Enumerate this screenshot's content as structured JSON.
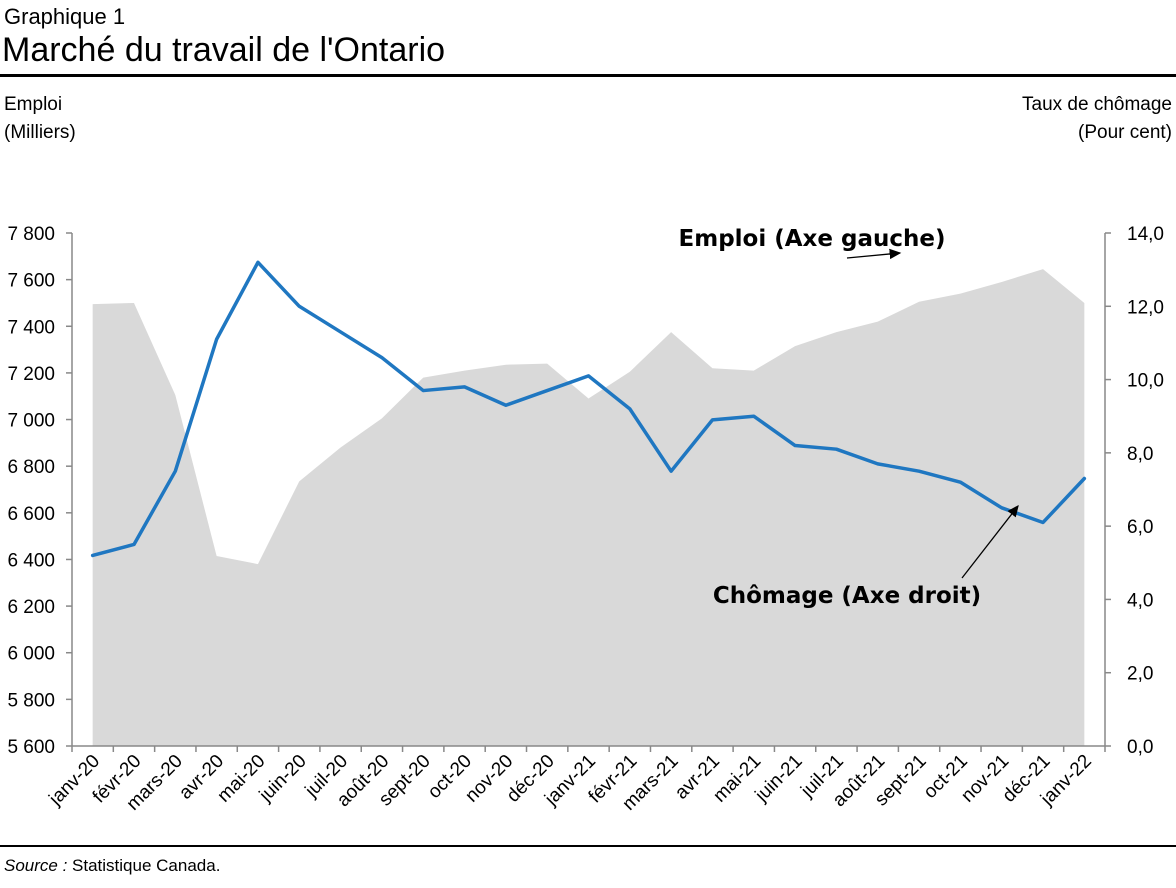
{
  "header": {
    "label": "Graphique 1",
    "title": "Marché du travail de l'Ontario"
  },
  "axes": {
    "left_title_line1": "Emploi",
    "left_title_line2": "(Milliers)",
    "right_title_line1": "Taux de chômage",
    "right_title_line2": "(Pour cent)"
  },
  "footer": {
    "source_label": "Source :",
    "source_text": " Statistique Canada."
  },
  "colors": {
    "area": "#d9d9d9",
    "line": "#1f77c1",
    "axis": "#888888"
  },
  "chart_data": {
    "type": "area+line",
    "categories": [
      "janv-20",
      "févr-20",
      "mars-20",
      "avr-20",
      "mai-20",
      "juin-20",
      "juil-20",
      "août-20",
      "sept-20",
      "oct-20",
      "nov-20",
      "déc-20",
      "janv-21",
      "févr-21",
      "mars-21",
      "avr-21",
      "mai-21",
      "juin-21",
      "juil-21",
      "août-21",
      "sept-21",
      "oct-21",
      "nov-21",
      "déc-21",
      "janv-22"
    ],
    "series": [
      {
        "name": "Emploi (Axe gauche)",
        "type": "area",
        "axis": "left",
        "values": [
          7495,
          7500,
          7105,
          6415,
          6380,
          6735,
          6880,
          7005,
          7180,
          7210,
          7235,
          7240,
          7090,
          7205,
          7375,
          7220,
          7210,
          7315,
          7375,
          7420,
          7505,
          7540,
          7590,
          7645,
          7500
        ]
      },
      {
        "name": "Chômage (Axe droit)",
        "type": "line",
        "axis": "right",
        "values": [
          5.2,
          5.5,
          7.5,
          11.1,
          13.2,
          12.0,
          11.3,
          10.6,
          9.7,
          9.8,
          9.3,
          9.7,
          10.1,
          9.2,
          7.5,
          8.9,
          9.0,
          8.2,
          8.1,
          7.7,
          7.5,
          7.2,
          6.5,
          6.1,
          7.3
        ]
      }
    ],
    "y_left": {
      "min": 5600,
      "max": 7800,
      "ticks": [
        "5 600",
        "5 800",
        "6 000",
        "6 200",
        "6 400",
        "6 600",
        "6 800",
        "7 000",
        "7 200",
        "7 400",
        "7 600",
        "7 800"
      ]
    },
    "y_right": {
      "min": 0,
      "max": 14,
      "ticks": [
        "0,0",
        "2,0",
        "4,0",
        "6,0",
        "8,0",
        "10,0",
        "12,0",
        "14,0"
      ]
    },
    "annotations": [
      {
        "text": "Emploi (Axe gauche)"
      },
      {
        "text": "Chômage (Axe droit)"
      }
    ],
    "grid": false,
    "legend": "none"
  }
}
